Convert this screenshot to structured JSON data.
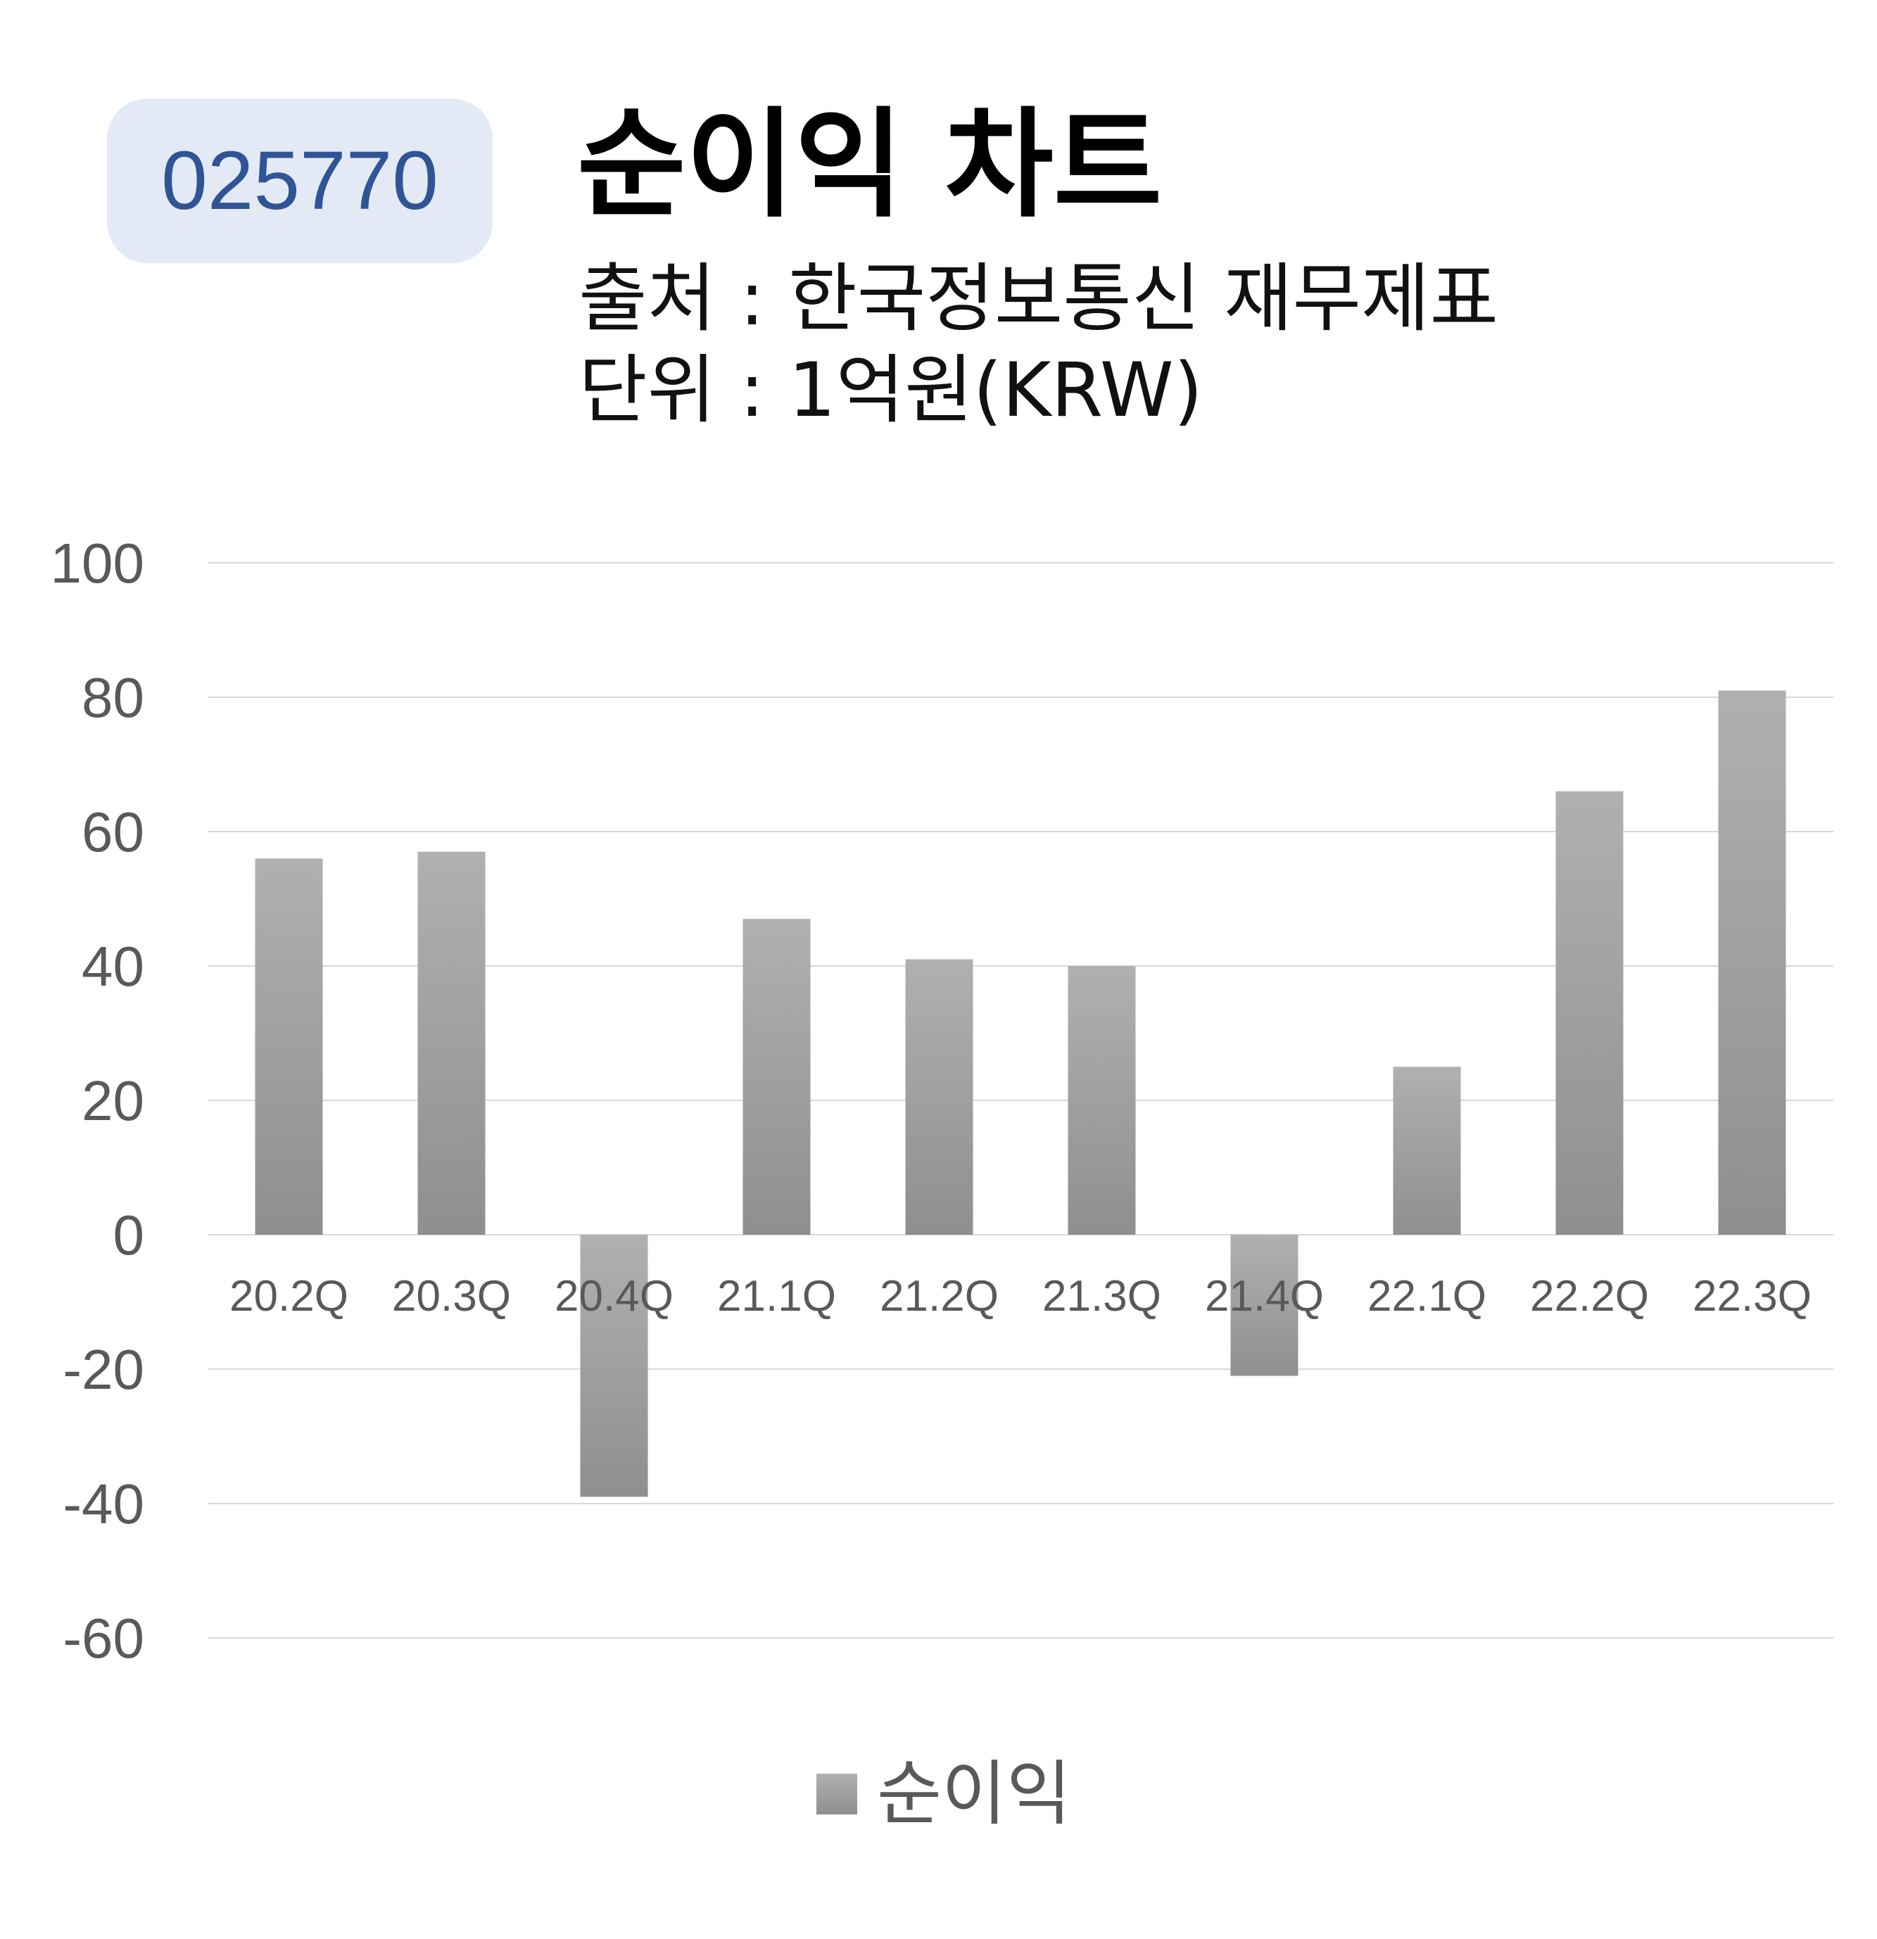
{
  "header": {
    "code": "025770",
    "title": "순이익 차트",
    "source": "출처 : 한국정보통신 재무제표",
    "unit": "단위 : 1억원(KRW)"
  },
  "colors": {
    "bar": "#a3a3a3",
    "bar_dark": "#8f8f8f",
    "grid": "#d9d9d9",
    "axis_text": "#595959",
    "badge_bg": "#e4eaf5",
    "badge_text": "#2f5597"
  },
  "chart_data": {
    "type": "bar",
    "categories": [
      "20.2Q",
      "20.3Q",
      "20.4Q",
      "21.1Q",
      "21.2Q",
      "21.3Q",
      "21.4Q",
      "22.1Q",
      "22.2Q",
      "22.3Q"
    ],
    "series": [
      {
        "name": "순이익",
        "values": [
          56,
          57,
          -39,
          47,
          41,
          40,
          -21,
          25,
          66,
          81
        ]
      }
    ],
    "ylim": [
      -60,
      100
    ],
    "yticks": [
      100,
      80,
      60,
      40,
      20,
      0,
      -20,
      -40,
      -60
    ],
    "grid": true,
    "legend": "bottom"
  }
}
